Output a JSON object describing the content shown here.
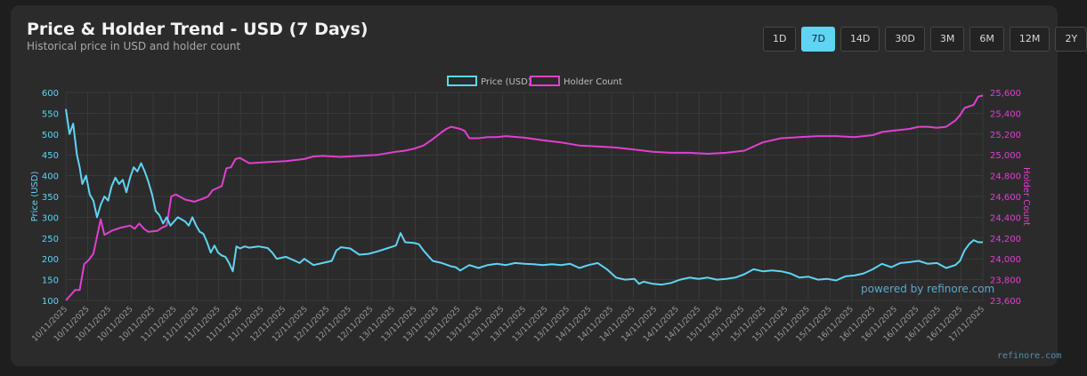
{
  "header": {
    "title": "Price & Holder Trend - USD (7 Days)",
    "subtitle": "Historical price in USD and holder count"
  },
  "ranges": [
    {
      "label": "1D",
      "active": false
    },
    {
      "label": "7D",
      "active": true
    },
    {
      "label": "14D",
      "active": false
    },
    {
      "label": "30D",
      "active": false
    },
    {
      "label": "3M",
      "active": false
    },
    {
      "label": "6M",
      "active": false
    },
    {
      "label": "12M",
      "active": false
    },
    {
      "label": "2Y",
      "active": false
    }
  ],
  "watermark": "powered by refinore.com",
  "footer_brand": "refinore.com",
  "colors": {
    "price": "#5fd4f4",
    "holders": "#e040d0",
    "grid": "#3a3a3a",
    "tick": "#9a9a9a"
  },
  "chart_data": {
    "type": "line",
    "legend": {
      "position": "top-center",
      "entries": [
        "Price (USD)",
        "Holder Count"
      ]
    },
    "x_tick_labels": [
      "10/11/2025",
      "10/11/2025",
      "10/11/2025",
      "10/11/2025",
      "10/11/2025",
      "11/11/2025",
      "11/11/2025",
      "11/11/2025",
      "11/11/2025",
      "11/11/2025",
      "12/11/2025",
      "12/11/2025",
      "12/11/2025",
      "12/11/2025",
      "12/11/2025",
      "13/11/2025",
      "13/11/2025",
      "13/11/2025",
      "13/11/2025",
      "13/11/2025",
      "13/11/2025",
      "13/11/2025",
      "13/11/2025",
      "13/11/2025",
      "14/11/2025",
      "14/11/2025",
      "14/11/2025",
      "14/11/2025",
      "14/11/2025",
      "14/11/2025",
      "15/11/2025",
      "15/11/2025",
      "15/11/2025",
      "15/11/2025",
      "15/11/2025",
      "15/11/2025",
      "16/11/2025",
      "16/11/2025",
      "16/11/2025",
      "16/11/2025",
      "16/11/2025",
      "16/11/2025",
      "17/11/2025"
    ],
    "x_range": [
      0,
      1
    ],
    "series": [
      {
        "name": "Price (USD)",
        "axis": "left",
        "ylabel": "Price (USD)",
        "ylim": [
          100,
          600
        ],
        "ticks": [
          600,
          550,
          500,
          450,
          400,
          350,
          300,
          250,
          200,
          150,
          100
        ],
        "points": [
          [
            0,
            560
          ],
          [
            0.004,
            500
          ],
          [
            0.008,
            525
          ],
          [
            0.012,
            450
          ],
          [
            0.015,
            420
          ],
          [
            0.018,
            380
          ],
          [
            0.022,
            400
          ],
          [
            0.026,
            355
          ],
          [
            0.03,
            340
          ],
          [
            0.034,
            300
          ],
          [
            0.038,
            330
          ],
          [
            0.042,
            350
          ],
          [
            0.046,
            340
          ],
          [
            0.05,
            375
          ],
          [
            0.054,
            395
          ],
          [
            0.058,
            380
          ],
          [
            0.062,
            390
          ],
          [
            0.066,
            360
          ],
          [
            0.07,
            395
          ],
          [
            0.074,
            420
          ],
          [
            0.078,
            410
          ],
          [
            0.082,
            430
          ],
          [
            0.086,
            410
          ],
          [
            0.09,
            385
          ],
          [
            0.094,
            355
          ],
          [
            0.098,
            315
          ],
          [
            0.102,
            305
          ],
          [
            0.106,
            285
          ],
          [
            0.11,
            300
          ],
          [
            0.114,
            280
          ],
          [
            0.118,
            290
          ],
          [
            0.122,
            300
          ],
          [
            0.126,
            295
          ],
          [
            0.13,
            290
          ],
          [
            0.134,
            280
          ],
          [
            0.138,
            300
          ],
          [
            0.142,
            280
          ],
          [
            0.146,
            265
          ],
          [
            0.15,
            260
          ],
          [
            0.154,
            240
          ],
          [
            0.158,
            215
          ],
          [
            0.162,
            232
          ],
          [
            0.166,
            215
          ],
          [
            0.17,
            208
          ],
          [
            0.174,
            205
          ],
          [
            0.178,
            190
          ],
          [
            0.182,
            170
          ],
          [
            0.186,
            230
          ],
          [
            0.19,
            225
          ],
          [
            0.195,
            230
          ],
          [
            0.2,
            227
          ],
          [
            0.21,
            230
          ],
          [
            0.22,
            226
          ],
          [
            0.225,
            215
          ],
          [
            0.23,
            200
          ],
          [
            0.24,
            205
          ],
          [
            0.25,
            195
          ],
          [
            0.255,
            190
          ],
          [
            0.26,
            200
          ],
          [
            0.27,
            185
          ],
          [
            0.28,
            190
          ],
          [
            0.29,
            195
          ],
          [
            0.295,
            220
          ],
          [
            0.3,
            228
          ],
          [
            0.31,
            225
          ],
          [
            0.32,
            210
          ],
          [
            0.33,
            212
          ],
          [
            0.34,
            218
          ],
          [
            0.35,
            225
          ],
          [
            0.36,
            232
          ],
          [
            0.365,
            262
          ],
          [
            0.37,
            240
          ],
          [
            0.38,
            238
          ],
          [
            0.385,
            235
          ],
          [
            0.39,
            220
          ],
          [
            0.4,
            195
          ],
          [
            0.41,
            190
          ],
          [
            0.42,
            182
          ],
          [
            0.425,
            180
          ],
          [
            0.43,
            172
          ],
          [
            0.44,
            185
          ],
          [
            0.45,
            178
          ],
          [
            0.46,
            185
          ],
          [
            0.47,
            188
          ],
          [
            0.48,
            185
          ],
          [
            0.49,
            190
          ],
          [
            0.5,
            188
          ],
          [
            0.51,
            187
          ],
          [
            0.52,
            185
          ],
          [
            0.53,
            187
          ],
          [
            0.54,
            185
          ],
          [
            0.55,
            188
          ],
          [
            0.56,
            178
          ],
          [
            0.57,
            185
          ],
          [
            0.58,
            190
          ],
          [
            0.59,
            175
          ],
          [
            0.6,
            155
          ],
          [
            0.61,
            150
          ],
          [
            0.62,
            152
          ],
          [
            0.625,
            140
          ],
          [
            0.63,
            145
          ],
          [
            0.64,
            140
          ],
          [
            0.65,
            138
          ],
          [
            0.66,
            142
          ],
          [
            0.67,
            150
          ],
          [
            0.68,
            155
          ],
          [
            0.69,
            152
          ],
          [
            0.7,
            155
          ],
          [
            0.71,
            150
          ],
          [
            0.72,
            152
          ],
          [
            0.73,
            155
          ],
          [
            0.74,
            163
          ],
          [
            0.75,
            175
          ],
          [
            0.76,
            170
          ],
          [
            0.77,
            172
          ],
          [
            0.78,
            170
          ],
          [
            0.79,
            165
          ],
          [
            0.8,
            155
          ],
          [
            0.81,
            157
          ],
          [
            0.82,
            150
          ],
          [
            0.83,
            152
          ],
          [
            0.84,
            148
          ],
          [
            0.85,
            158
          ],
          [
            0.86,
            160
          ],
          [
            0.87,
            165
          ],
          [
            0.88,
            175
          ],
          [
            0.89,
            188
          ],
          [
            0.9,
            180
          ],
          [
            0.91,
            190
          ],
          [
            0.92,
            192
          ],
          [
            0.93,
            195
          ],
          [
            0.94,
            188
          ],
          [
            0.95,
            190
          ],
          [
            0.96,
            178
          ],
          [
            0.97,
            185
          ],
          [
            0.975,
            195
          ],
          [
            0.98,
            220
          ],
          [
            0.985,
            235
          ],
          [
            0.99,
            245
          ],
          [
            0.995,
            240
          ],
          [
            1,
            240
          ]
        ]
      },
      {
        "name": "Holder Count",
        "axis": "right",
        "ylabel": "Holder Count",
        "ylim": [
          23600,
          25600
        ],
        "ticks": [
          25600,
          25400,
          25200,
          25000,
          24800,
          24600,
          24400,
          24200,
          24000,
          23800,
          23600
        ],
        "points": [
          [
            0,
            23600
          ],
          [
            0.005,
            23650
          ],
          [
            0.01,
            23700
          ],
          [
            0.015,
            23700
          ],
          [
            0.02,
            23950
          ],
          [
            0.025,
            23990
          ],
          [
            0.03,
            24050
          ],
          [
            0.035,
            24260
          ],
          [
            0.038,
            24380
          ],
          [
            0.042,
            24230
          ],
          [
            0.05,
            24270
          ],
          [
            0.06,
            24300
          ],
          [
            0.07,
            24320
          ],
          [
            0.075,
            24290
          ],
          [
            0.08,
            24340
          ],
          [
            0.085,
            24290
          ],
          [
            0.09,
            24260
          ],
          [
            0.1,
            24270
          ],
          [
            0.105,
            24300
          ],
          [
            0.11,
            24320
          ],
          [
            0.115,
            24600
          ],
          [
            0.12,
            24620
          ],
          [
            0.13,
            24570
          ],
          [
            0.14,
            24550
          ],
          [
            0.15,
            24580
          ],
          [
            0.155,
            24600
          ],
          [
            0.16,
            24660
          ],
          [
            0.165,
            24680
          ],
          [
            0.17,
            24700
          ],
          [
            0.175,
            24870
          ],
          [
            0.18,
            24880
          ],
          [
            0.185,
            24960
          ],
          [
            0.19,
            24970
          ],
          [
            0.2,
            24920
          ],
          [
            0.22,
            24930
          ],
          [
            0.24,
            24940
          ],
          [
            0.26,
            24960
          ],
          [
            0.27,
            24985
          ],
          [
            0.28,
            24990
          ],
          [
            0.3,
            24980
          ],
          [
            0.32,
            24990
          ],
          [
            0.34,
            25000
          ],
          [
            0.36,
            25030
          ],
          [
            0.37,
            25040
          ],
          [
            0.38,
            25060
          ],
          [
            0.39,
            25090
          ],
          [
            0.4,
            25150
          ],
          [
            0.41,
            25220
          ],
          [
            0.415,
            25250
          ],
          [
            0.42,
            25270
          ],
          [
            0.43,
            25250
          ],
          [
            0.435,
            25230
          ],
          [
            0.44,
            25160
          ],
          [
            0.45,
            25160
          ],
          [
            0.46,
            25170
          ],
          [
            0.47,
            25170
          ],
          [
            0.48,
            25180
          ],
          [
            0.5,
            25165
          ],
          [
            0.52,
            25140
          ],
          [
            0.54,
            25120
          ],
          [
            0.56,
            25090
          ],
          [
            0.58,
            25080
          ],
          [
            0.6,
            25070
          ],
          [
            0.62,
            25050
          ],
          [
            0.64,
            25030
          ],
          [
            0.66,
            25020
          ],
          [
            0.68,
            25020
          ],
          [
            0.7,
            25010
          ],
          [
            0.72,
            25020
          ],
          [
            0.74,
            25040
          ],
          [
            0.75,
            25080
          ],
          [
            0.76,
            25120
          ],
          [
            0.78,
            25160
          ],
          [
            0.8,
            25170
          ],
          [
            0.82,
            25180
          ],
          [
            0.84,
            25180
          ],
          [
            0.86,
            25170
          ],
          [
            0.88,
            25190
          ],
          [
            0.89,
            25220
          ],
          [
            0.9,
            25230
          ],
          [
            0.92,
            25250
          ],
          [
            0.93,
            25270
          ],
          [
            0.94,
            25270
          ],
          [
            0.95,
            25260
          ],
          [
            0.96,
            25270
          ],
          [
            0.97,
            25330
          ],
          [
            0.975,
            25380
          ],
          [
            0.98,
            25450
          ],
          [
            0.99,
            25480
          ],
          [
            0.995,
            25560
          ],
          [
            1,
            25570
          ]
        ]
      }
    ]
  }
}
